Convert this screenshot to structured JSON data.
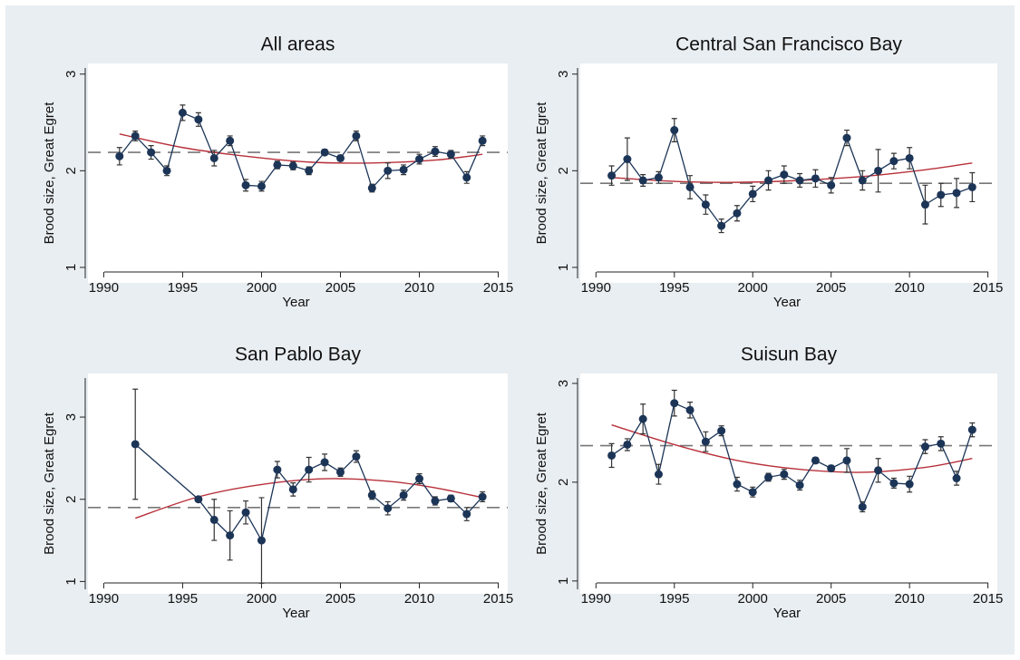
{
  "chart_data": [
    {
      "type": "line",
      "title": "All areas",
      "x_label": "Year",
      "y_label": "Brood size, Great Egret",
      "x": [
        1991,
        1992,
        1993,
        1994,
        1995,
        1996,
        1997,
        1998,
        1999,
        2000,
        2001,
        2002,
        2003,
        2004,
        2005,
        2006,
        2007,
        2008,
        2009,
        2010,
        2011,
        2012,
        2013,
        2014
      ],
      "series": [
        {
          "color": "#1c3557",
          "values": [
            2.15,
            2.36,
            2.19,
            2.0,
            2.6,
            2.53,
            2.13,
            2.31,
            1.85,
            1.84,
            2.06,
            2.05,
            2.0,
            2.19,
            2.13,
            2.36,
            1.82,
            2.0,
            2.01,
            2.12,
            2.2,
            2.17,
            1.93,
            2.31
          ],
          "errors": [
            0.09,
            0.05,
            0.07,
            0.05,
            0.08,
            0.07,
            0.08,
            0.05,
            0.06,
            0.05,
            0.04,
            0.04,
            0.04,
            0.03,
            0.03,
            0.05,
            0.04,
            0.08,
            0.05,
            0.05,
            0.05,
            0.04,
            0.06,
            0.05
          ]
        }
      ],
      "trend": {
        "color": "#b8303a",
        "x": [
          1991,
          1995,
          1999,
          2003,
          2007,
          2011,
          2014
        ],
        "values": [
          2.38,
          2.24,
          2.15,
          2.09,
          2.08,
          2.11,
          2.17
        ]
      },
      "mean_line": {
        "color": "#777777",
        "value": 2.19
      },
      "xlim": [
        1989,
        2015.6
      ],
      "xticks": [
        1990,
        1995,
        2000,
        2005,
        2010,
        2015
      ],
      "ylim": [
        0.84,
        3.11
      ],
      "yticks": [
        1,
        2,
        3
      ]
    },
    {
      "type": "line",
      "title": "Central San Francisco Bay",
      "x_label": "Year",
      "y_label": "Brood size, Great Egret",
      "x": [
        1991,
        1992,
        1993,
        1994,
        1995,
        1996,
        1997,
        1998,
        1999,
        2000,
        2001,
        2002,
        2003,
        2004,
        2005,
        2006,
        2007,
        2008,
        2009,
        2010,
        2011,
        2012,
        2013,
        2014
      ],
      "series": [
        {
          "color": "#1c3557",
          "values": [
            1.95,
            2.12,
            1.9,
            1.93,
            2.42,
            1.83,
            1.65,
            1.43,
            1.56,
            1.76,
            1.9,
            1.96,
            1.9,
            1.92,
            1.85,
            2.34,
            1.9,
            2.0,
            2.1,
            2.13,
            1.65,
            1.75,
            1.77,
            1.83
          ],
          "errors": [
            0.1,
            0.22,
            0.06,
            0.06,
            0.12,
            0.12,
            0.1,
            0.07,
            0.08,
            0.08,
            0.1,
            0.09,
            0.07,
            0.09,
            0.08,
            0.08,
            0.1,
            0.22,
            0.08,
            0.11,
            0.2,
            0.12,
            0.15,
            0.15
          ]
        }
      ],
      "trend": {
        "color": "#b8303a",
        "x": [
          1991,
          1995,
          1999,
          2003,
          2007,
          2011,
          2014
        ],
        "values": [
          1.93,
          1.89,
          1.88,
          1.9,
          1.94,
          2.01,
          2.08
        ]
      },
      "mean_line": {
        "color": "#777777",
        "value": 1.87
      },
      "xlim": [
        1989,
        2015.6
      ],
      "xticks": [
        1990,
        1995,
        2000,
        2005,
        2010,
        2015
      ],
      "ylim": [
        0.84,
        3.11
      ],
      "yticks": [
        1,
        2,
        3
      ]
    },
    {
      "type": "line",
      "title": "San Pablo Bay",
      "x_label": "Year",
      "y_label": "Brood size, Great Egret",
      "x": [
        1992,
        1996,
        1997,
        1998,
        1999,
        2000,
        2001,
        2002,
        2003,
        2004,
        2005,
        2006,
        2007,
        2008,
        2009,
        2010,
        2011,
        2012,
        2013,
        2014
      ],
      "series": [
        {
          "color": "#1c3557",
          "values": [
            2.67,
            2.0,
            1.75,
            1.56,
            1.84,
            1.5,
            2.36,
            2.12,
            2.36,
            2.45,
            2.33,
            2.52,
            2.05,
            1.89,
            2.05,
            2.25,
            1.98,
            2.01,
            1.82,
            2.03
          ],
          "errors": [
            0.67,
            0.01,
            0.25,
            0.3,
            0.14,
            0.52,
            0.1,
            0.08,
            0.15,
            0.1,
            0.05,
            0.07,
            0.05,
            0.08,
            0.06,
            0.06,
            0.05,
            0.04,
            0.08,
            0.06
          ]
        }
      ],
      "trend": {
        "color": "#b8303a",
        "x": [
          1992,
          1996,
          2000,
          2004,
          2008,
          2011,
          2014
        ],
        "values": [
          1.77,
          2.03,
          2.18,
          2.25,
          2.22,
          2.14,
          2.02
        ]
      },
      "mean_line": {
        "color": "#777777",
        "value": 1.9
      },
      "xlim": [
        1989,
        2015.6
      ],
      "xticks": [
        1990,
        1995,
        2000,
        2005,
        2010,
        2015
      ],
      "ylim": [
        0.85,
        3.53
      ],
      "yticks": [
        1,
        2,
        3
      ]
    },
    {
      "type": "line",
      "title": "Suisun Bay",
      "x_label": "Year",
      "y_label": "Brood size, Great Egret",
      "x": [
        1991,
        1992,
        1993,
        1994,
        1995,
        1996,
        1997,
        1998,
        1999,
        2000,
        2001,
        2002,
        2003,
        2004,
        2005,
        2006,
        2007,
        2008,
        2009,
        2010,
        2011,
        2012,
        2013,
        2014
      ],
      "series": [
        {
          "color": "#1c3557",
          "values": [
            2.27,
            2.38,
            2.64,
            2.08,
            2.8,
            2.73,
            2.41,
            2.52,
            1.98,
            1.9,
            2.05,
            2.08,
            1.97,
            2.22,
            2.14,
            2.22,
            1.75,
            2.12,
            1.99,
            1.98,
            2.36,
            2.39,
            2.04,
            2.53
          ],
          "errors": [
            0.12,
            0.06,
            0.15,
            0.1,
            0.13,
            0.08,
            0.1,
            0.05,
            0.07,
            0.05,
            0.04,
            0.05,
            0.05,
            0.03,
            0.03,
            0.12,
            0.05,
            0.12,
            0.05,
            0.08,
            0.07,
            0.07,
            0.07,
            0.07
          ]
        }
      ],
      "trend": {
        "color": "#b8303a",
        "x": [
          1991,
          1995,
          1999,
          2003,
          2007,
          2011,
          2014
        ],
        "values": [
          2.58,
          2.38,
          2.22,
          2.13,
          2.1,
          2.15,
          2.24
        ]
      },
      "mean_line": {
        "color": "#777777",
        "value": 2.37
      },
      "xlim": [
        1989,
        2015.6
      ],
      "xticks": [
        1990,
        1995,
        2000,
        2005,
        2010,
        2015
      ],
      "ylim": [
        0.87,
        3.1
      ],
      "yticks": [
        1,
        2,
        3
      ]
    }
  ]
}
